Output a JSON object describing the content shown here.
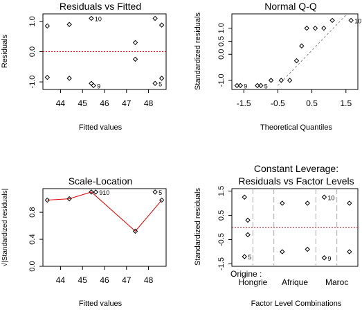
{
  "chart_data": [
    {
      "type": "scatter",
      "title": "Residuals vs Fitted",
      "xlabel": "Fitted values",
      "ylabel": "Residuals",
      "xlim": [
        43.2,
        48.8
      ],
      "ylim": [
        -1.25,
        1.25
      ],
      "xticks": [
        44,
        45,
        46,
        47,
        48
      ],
      "yticks": [
        -1.0,
        0.0,
        1.0
      ],
      "ytick_labels": [
        "-1.0",
        "0.0",
        "1.0"
      ],
      "reference_line": {
        "y": 0,
        "color": "#e00000",
        "style": "dotted"
      },
      "points": [
        {
          "x": 43.4,
          "y": 0.85
        },
        {
          "x": 43.4,
          "y": -0.85
        },
        {
          "x": 44.4,
          "y": 0.9
        },
        {
          "x": 44.4,
          "y": -0.88
        },
        {
          "x": 45.4,
          "y": 1.1,
          "label": "10"
        },
        {
          "x": 45.4,
          "y": -1.05
        },
        {
          "x": 45.5,
          "y": -1.12,
          "label": "9"
        },
        {
          "x": 47.4,
          "y": 0.3
        },
        {
          "x": 47.4,
          "y": -0.25
        },
        {
          "x": 48.3,
          "y": 1.1
        },
        {
          "x": 48.3,
          "y": -1.05,
          "label": "5"
        },
        {
          "x": 48.6,
          "y": 0.88
        },
        {
          "x": 48.6,
          "y": -0.88
        }
      ]
    },
    {
      "type": "scatter",
      "title": "Normal Q-Q",
      "xlabel": "Theoretical Quantiles",
      "ylabel": "Standardized residuals",
      "xlim": [
        -1.85,
        1.85
      ],
      "ylim": [
        -1.35,
        1.55
      ],
      "xticks": [
        -1.5,
        -0.5,
        0.5,
        1.5
      ],
      "xtick_labels": [
        "-1.5",
        "-0.5",
        "0.5",
        "1.5"
      ],
      "yticks": [
        -1.0,
        0.0,
        0.5,
        1.0
      ],
      "ytick_labels": [
        "-1.0",
        "0.0",
        "0.5",
        "1.0"
      ],
      "reference_line": {
        "from": [
          -0.5,
          -1.2
        ],
        "to": [
          1.5,
          1.5
        ],
        "color": "#888888",
        "style": "dashed"
      },
      "points": [
        {
          "x": -1.7,
          "y": -1.2
        },
        {
          "x": -1.6,
          "y": -1.2,
          "label": "9"
        },
        {
          "x": -1.1,
          "y": -1.2
        },
        {
          "x": -1.0,
          "y": -1.2,
          "label": "5"
        },
        {
          "x": -0.7,
          "y": -1.0
        },
        {
          "x": -0.4,
          "y": -1.0
        },
        {
          "x": -0.15,
          "y": -1.0
        },
        {
          "x": 0.05,
          "y": -0.25
        },
        {
          "x": 0.2,
          "y": 0.32
        },
        {
          "x": 0.35,
          "y": 1.0
        },
        {
          "x": 0.6,
          "y": 1.0
        },
        {
          "x": 0.85,
          "y": 1.0
        },
        {
          "x": 1.1,
          "y": 1.3
        },
        {
          "x": 1.65,
          "y": 1.3,
          "label": "10"
        }
      ]
    },
    {
      "type": "scatter",
      "title": "Scale-Location",
      "xlabel": "Fitted values",
      "ylabel": "√|Standardized residuals|",
      "xlim": [
        43.2,
        48.8
      ],
      "ylim": [
        0,
        1.15
      ],
      "xticks": [
        44,
        45,
        46,
        47,
        48
      ],
      "yticks": [
        0.0,
        0.4,
        0.8
      ],
      "ytick_labels": [
        "0.0",
        "0.4",
        "0.8"
      ],
      "smoother": {
        "color": "#e00000",
        "points": [
          [
            43.4,
            0.98
          ],
          [
            44.4,
            1.0
          ],
          [
            45.4,
            1.1
          ],
          [
            47.4,
            0.52
          ],
          [
            48.6,
            0.98
          ]
        ]
      },
      "points": [
        {
          "x": 43.4,
          "y": 0.98
        },
        {
          "x": 44.4,
          "y": 1.0
        },
        {
          "x": 45.4,
          "y": 1.1
        },
        {
          "x": 45.6,
          "y": 1.1,
          "label": "910"
        },
        {
          "x": 47.4,
          "y": 0.52
        },
        {
          "x": 48.3,
          "y": 1.1,
          "label": "5"
        },
        {
          "x": 48.6,
          "y": 0.98
        }
      ]
    },
    {
      "type": "scatter",
      "title": "Constant Leverage:",
      "subtitle": "Residuals vs Factor Levels",
      "xlabel": "Factor Level Combinations",
      "ylabel": "Standardized residuals",
      "xlim": [
        0,
        3
      ],
      "ylim": [
        -1.6,
        1.6
      ],
      "factor_prefix": "Origine :",
      "categories": [
        "Hongrie",
        "Afrique",
        "Maroc"
      ],
      "yticks": [
        -1.5,
        -0.5,
        0.5,
        1.5
      ],
      "ytick_labels": [
        "-1.5",
        "-0.5",
        "0.5",
        "1.5"
      ],
      "dividers": [
        0.5,
        1.0,
        2.0,
        2.5
      ],
      "reference_line": {
        "y": 0,
        "color": "#e00000",
        "style": "dotted"
      },
      "points": [
        {
          "x": 0.3,
          "y": 1.25
        },
        {
          "x": 0.3,
          "y": -1.2,
          "label": "5"
        },
        {
          "x": 0.38,
          "y": 0.3
        },
        {
          "x": 0.38,
          "y": -0.3
        },
        {
          "x": 1.2,
          "y": 1.0
        },
        {
          "x": 1.2,
          "y": -1.0
        },
        {
          "x": 1.8,
          "y": 1.0
        },
        {
          "x": 1.8,
          "y": -0.9
        },
        {
          "x": 2.2,
          "y": 1.25,
          "label": "10"
        },
        {
          "x": 2.2,
          "y": -1.25,
          "label": "9"
        },
        {
          "x": 2.8,
          "y": 1.0
        },
        {
          "x": 2.8,
          "y": -1.0
        }
      ]
    }
  ]
}
